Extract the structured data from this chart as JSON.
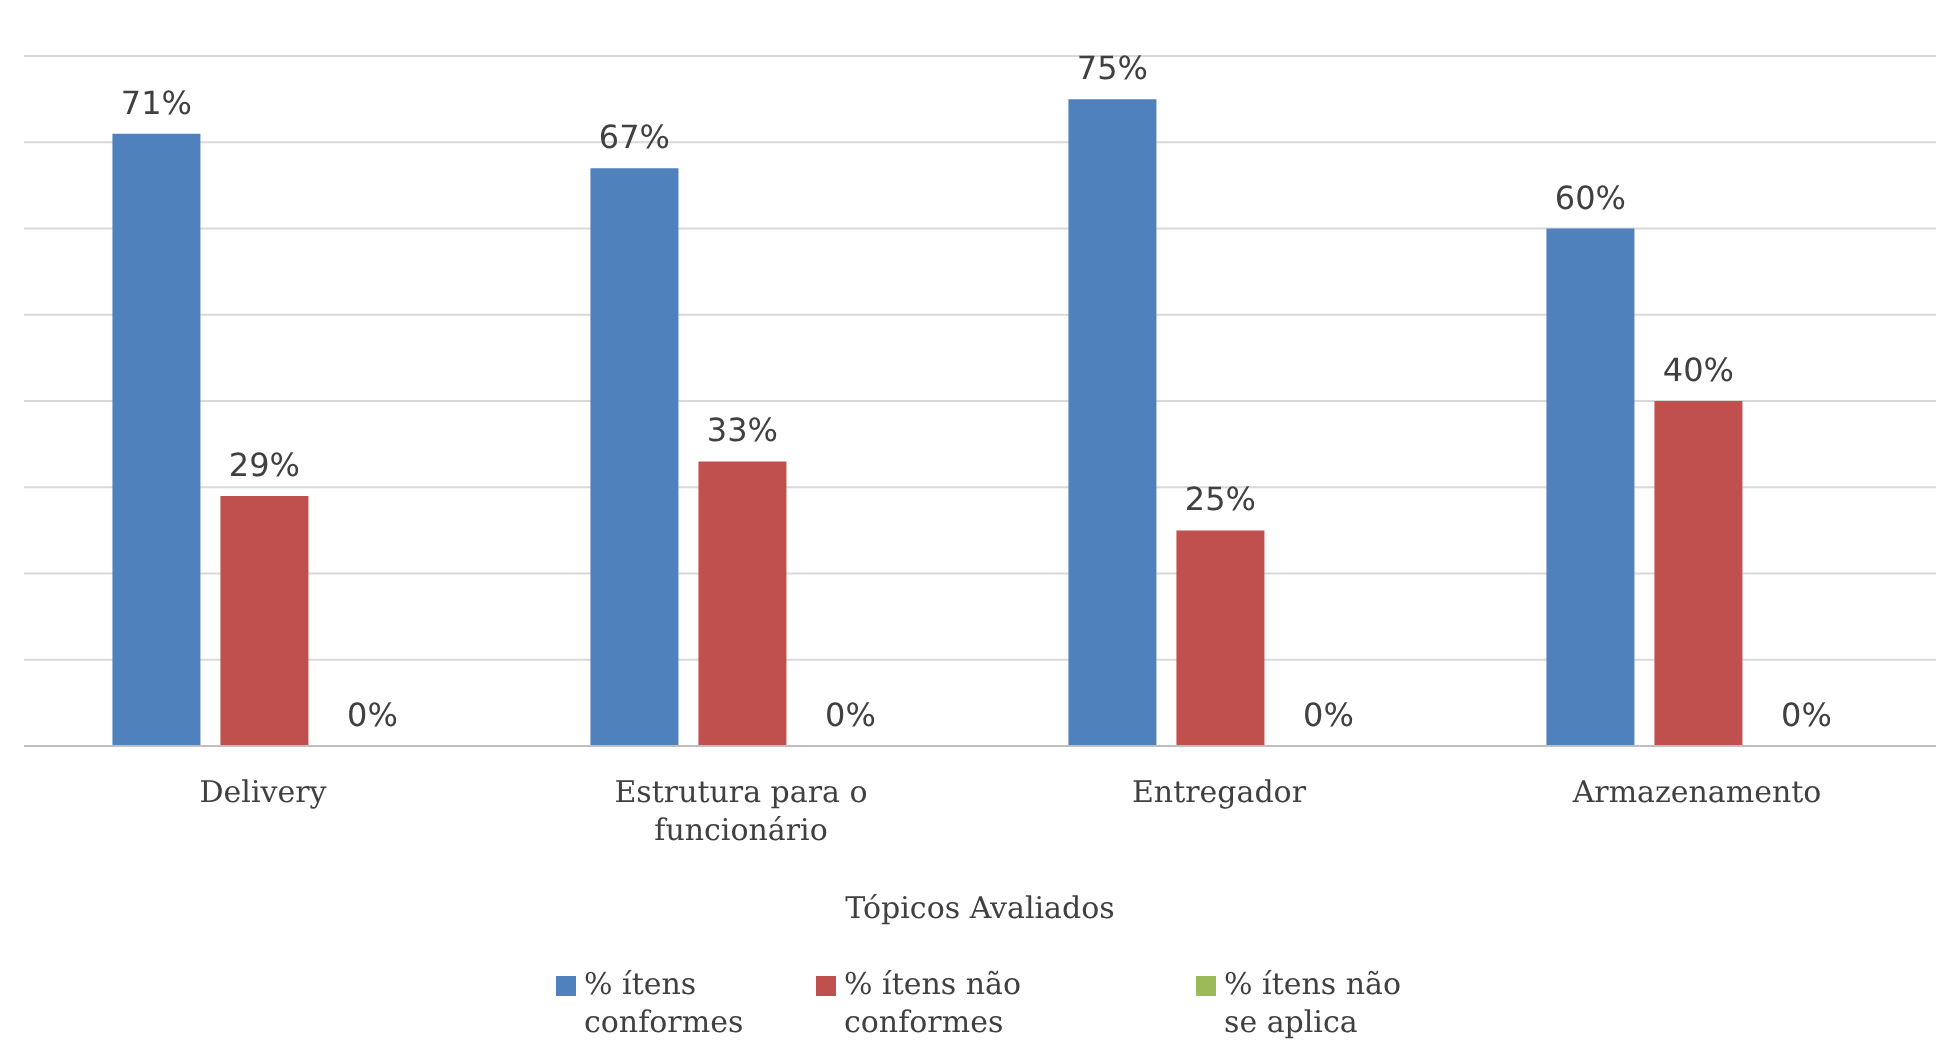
{
  "chart_data": {
    "type": "bar",
    "xlabel": "Tópicos Avaliados",
    "categories": [
      "Delivery",
      "Estrutura para o funcionário",
      "Entregador",
      "Armazenamento"
    ],
    "series": [
      {
        "name": "% ítens conformes",
        "color": "#4f81bd",
        "values": [
          71,
          67,
          75,
          60
        ],
        "value_labels": [
          "71%",
          "67%",
          "75%",
          "60%"
        ]
      },
      {
        "name": "% ítens não conformes",
        "color": "#c0504d",
        "values": [
          29,
          33,
          25,
          40
        ],
        "value_labels": [
          "29%",
          "33%",
          "25%",
          "40%"
        ]
      },
      {
        "name": "% ítens não se aplica",
        "color": "#9bbb59",
        "values": [
          0,
          0,
          0,
          0
        ],
        "value_labels": [
          "0%",
          "0%",
          "0%",
          "0%"
        ]
      }
    ],
    "ylim": [
      0,
      80
    ],
    "yticks": [
      {
        "value": 0,
        "label": null
      },
      {
        "value": 10,
        "label": null
      },
      {
        "value": 20,
        "label": null
      },
      {
        "value": 30,
        "label": null
      },
      {
        "value": 40,
        "label": null
      },
      {
        "value": 50,
        "label": null
      },
      {
        "value": 60,
        "label": null
      },
      {
        "value": 70,
        "label": null
      },
      {
        "value": 80,
        "label": null
      }
    ],
    "tick_labels": "x",
    "grid": "y",
    "legend": "bottom"
  }
}
